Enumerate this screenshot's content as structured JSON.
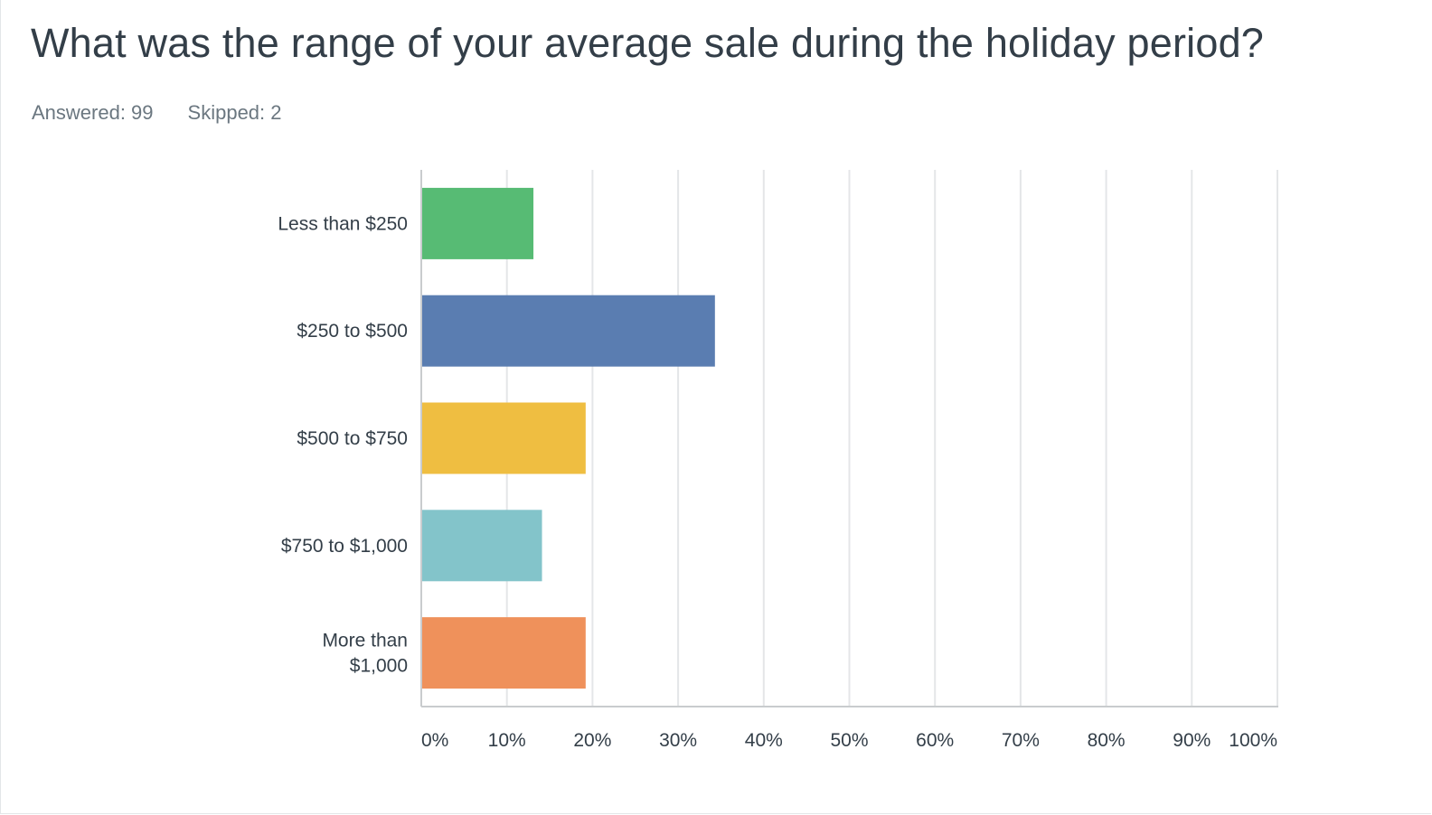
{
  "question": {
    "title": "What was the range of your average sale during the holiday period?",
    "answered": "Answered: 99",
    "skipped": "Skipped: 2"
  },
  "chart_data": {
    "type": "bar",
    "orientation": "horizontal",
    "categories": [
      "Less than $250",
      "$250 to $500",
      "$500 to $750",
      "$750 to $1,000",
      "More than $1,000"
    ],
    "values": [
      13.1,
      34.3,
      19.2,
      14.1,
      19.2
    ],
    "colors": [
      "#57bb74",
      "#5a7db1",
      "#efbe41",
      "#83c4ca",
      "#ef915b"
    ],
    "xlim": [
      0,
      100
    ],
    "xticks": [
      0,
      10,
      20,
      30,
      40,
      50,
      60,
      70,
      80,
      90,
      100
    ],
    "xtick_labels": [
      "0%",
      "10%",
      "20%",
      "30%",
      "40%",
      "50%",
      "60%",
      "70%",
      "80%",
      "90%",
      "100%"
    ],
    "grid": true,
    "legend": "none"
  }
}
